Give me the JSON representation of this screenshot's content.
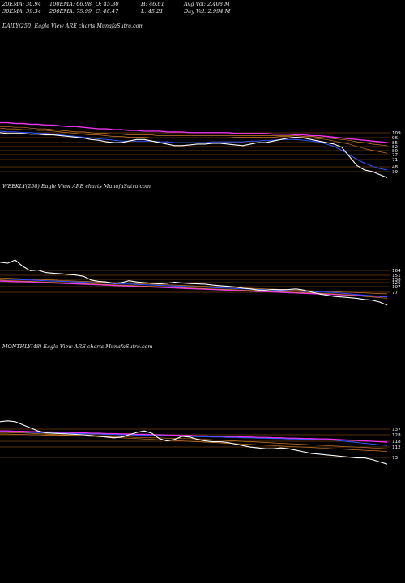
{
  "header": {
    "ema20": "20EMA: 30.94",
    "ema100": "100EMA: 66.98",
    "open": "O: 45.30",
    "high": "H: 46.61",
    "avg_vol": "Avg Vol: 2.408 M",
    "ema30": "30EMA: 39.34",
    "ema200": "200EMA: 75.99",
    "close": "C: 46.47",
    "low": "L: 45.21",
    "day_vol": "Day Vol: 2.994 M"
  },
  "colors": {
    "background": "#000000",
    "price": "#ffffff",
    "ema_blue": "#3355ff",
    "ema_magenta": "#ee33ee",
    "ema_orange": "#cc7a2a",
    "level_line": "#c06a10"
  },
  "chart_data": [
    {
      "type": "line",
      "title": "DAILY(250) Eagle   View  ARE charts MunafaSutra.com",
      "y_tick_labels": [
        "109",
        "96",
        "85",
        "82",
        "80",
        "77",
        "71",
        "48",
        "39"
      ],
      "series": [
        {
          "values": [
            95,
            94,
            94,
            94,
            93,
            93,
            92,
            92,
            91,
            90,
            89,
            88,
            86,
            85,
            83,
            82,
            82,
            84,
            86,
            86,
            84,
            82,
            80,
            78,
            78,
            79,
            80,
            80,
            81,
            81,
            80,
            79,
            78,
            80,
            82,
            82,
            84,
            86,
            88,
            89,
            88,
            86,
            84,
            82,
            80,
            76,
            64,
            52,
            46,
            44,
            40,
            36
          ]
        },
        {
          "values": [
            97,
            96,
            96,
            95,
            95,
            94,
            94,
            93,
            92,
            91,
            90,
            89,
            88,
            87,
            86,
            85,
            84,
            84,
            84,
            84,
            84,
            83,
            83,
            82,
            82,
            82,
            82,
            82,
            83,
            83,
            83,
            83,
            83,
            84,
            84,
            85,
            85,
            86,
            86,
            86,
            85,
            84,
            83,
            80,
            77,
            72,
            66,
            60,
            55,
            51,
            48,
            46
          ]
        },
        {
          "values": [
            101,
            100,
            100,
            99,
            99,
            98,
            98,
            97,
            96,
            95,
            94,
            93,
            92,
            92,
            91,
            90,
            90,
            89,
            89,
            89,
            88,
            88,
            88,
            88,
            88,
            88,
            88,
            88,
            88,
            88,
            88,
            89,
            89,
            89,
            89,
            89,
            89,
            90,
            90,
            89,
            89,
            88,
            87,
            86,
            84,
            82,
            80,
            77,
            74,
            72,
            70,
            68
          ]
        },
        {
          "values": [
            103,
            103,
            102,
            102,
            101,
            100,
            100,
            99,
            98,
            97,
            96,
            96,
            95,
            94,
            94,
            93,
            93,
            92,
            92,
            92,
            92,
            91,
            91,
            91,
            91,
            91,
            91,
            91,
            91,
            91,
            91,
            91,
            91,
            91,
            91,
            91,
            91,
            91,
            91,
            91,
            90,
            90,
            89,
            88,
            87,
            86,
            85,
            83,
            82,
            80,
            79,
            78
          ]
        },
        {
          "values": [
            108,
            108,
            107,
            107,
            106,
            106,
            105,
            105,
            104,
            103,
            103,
            102,
            101,
            100,
            100,
            99,
            99,
            98,
            98,
            97,
            97,
            97,
            96,
            96,
            96,
            95,
            95,
            95,
            95,
            95,
            95,
            94,
            94,
            94,
            94,
            94,
            93,
            93,
            93,
            92,
            92,
            91,
            91,
            90,
            89,
            88,
            87,
            86,
            85,
            84,
            83,
            82
          ]
        }
      ]
    },
    {
      "type": "line",
      "title": "WEEKLY(258) Eagle   View  ARE charts MunafaSutra.com",
      "y_tick_labels": [
        "164",
        "151",
        "138",
        "126",
        "107",
        "77"
      ],
      "series": [
        {
          "values": [
            185,
            182,
            192,
            172,
            158,
            160,
            152,
            150,
            148,
            146,
            144,
            140,
            128,
            124,
            122,
            118,
            120,
            126,
            122,
            120,
            118,
            116,
            118,
            121,
            119,
            117,
            116,
            115,
            112,
            110,
            108,
            106,
            102,
            100,
            96,
            96,
            98,
            97,
            98,
            100,
            96,
            90,
            84,
            80,
            76,
            74,
            72,
            70,
            66,
            64,
            58,
            48
          ]
        },
        {
          "values": [
            132,
            131,
            130,
            129,
            128,
            127,
            126,
            125,
            124,
            123,
            122,
            121,
            120,
            119,
            118,
            117,
            116,
            115,
            114,
            113,
            112,
            111,
            110,
            109,
            108,
            107,
            106,
            105,
            104,
            103,
            102,
            101,
            100,
            99,
            98,
            97,
            96,
            95,
            94,
            93,
            92,
            91,
            90,
            89,
            88,
            86,
            84,
            82,
            80,
            78,
            76,
            74
          ]
        },
        {
          "values": [
            128,
            127,
            126,
            125,
            124,
            123,
            122,
            121,
            120,
            119,
            118,
            117,
            116,
            115,
            114,
            113,
            112,
            111,
            110,
            109,
            108,
            107,
            106,
            105,
            104,
            103,
            102,
            101,
            100,
            99,
            98,
            97,
            96,
            95,
            94,
            93,
            92,
            91,
            90,
            89,
            88,
            87,
            86,
            85,
            84,
            82,
            80,
            78,
            76,
            74,
            72,
            70
          ]
        },
        {
          "values": [
            135,
            134,
            133,
            132,
            131,
            130,
            129,
            128,
            127,
            126,
            125,
            124,
            123,
            122,
            121,
            120,
            119,
            118,
            117,
            116,
            115,
            114,
            113,
            112,
            111,
            110,
            109,
            108,
            107,
            106,
            105,
            104,
            103,
            102,
            101,
            100,
            99,
            98,
            97,
            96,
            95,
            94,
            93,
            92,
            91,
            90,
            89,
            88,
            87,
            86,
            85,
            84
          ]
        },
        {
          "values": [
            125,
            124,
            123,
            123,
            122,
            121,
            120,
            119,
            118,
            117,
            116,
            115,
            114,
            113,
            112,
            111,
            110,
            109,
            108,
            107,
            106,
            105,
            104,
            103,
            102,
            101,
            100,
            99,
            98,
            97,
            96,
            95,
            94,
            93,
            92,
            91,
            90,
            89,
            88,
            87,
            86,
            85,
            84,
            83,
            82,
            81,
            80,
            79,
            78,
            77,
            76,
            75
          ]
        }
      ]
    },
    {
      "type": "line",
      "title": "MONTHLY(48) Eagle   View  ARE charts MunafaSutra.com",
      "y_tick_labels": [
        "137",
        "128",
        "118",
        "112",
        "73"
      ],
      "series": [
        {
          "values": [
            150,
            152,
            150,
            142,
            134,
            126,
            121,
            120,
            119,
            118,
            117,
            116,
            114,
            112,
            110,
            108,
            110,
            116,
            122,
            126,
            120,
            106,
            100,
            104,
            112,
            110,
            104,
            100,
            98,
            98,
            96,
            92,
            88,
            84,
            82,
            80,
            80,
            82,
            80,
            76,
            72,
            68,
            66,
            64,
            62,
            60,
            58,
            56,
            56,
            52,
            46,
            40
          ]
        },
        {
          "values": [
            124,
            124,
            123,
            123,
            122,
            122,
            121,
            121,
            120,
            120,
            119,
            119,
            118,
            118,
            117,
            117,
            116,
            116,
            115,
            115,
            114,
            114,
            113,
            113,
            112,
            112,
            111,
            111,
            110,
            110,
            109,
            109,
            108,
            108,
            107,
            107,
            106,
            106,
            105,
            105,
            104,
            104,
            103,
            103,
            102,
            100,
            98,
            96,
            94,
            92,
            90,
            88
          ]
        },
        {
          "values": [
            122,
            122,
            121,
            121,
            120,
            119,
            118,
            117,
            116,
            115,
            114,
            113,
            112,
            111,
            110,
            109,
            108,
            107,
            106,
            105,
            104,
            103,
            102,
            101,
            100,
            99,
            98,
            97,
            96,
            95,
            94,
            93,
            92,
            91,
            90,
            89,
            88,
            87,
            86,
            85,
            84,
            83,
            82,
            81,
            80,
            79,
            78,
            77,
            76,
            75,
            74,
            73
          ]
        },
        {
          "values": [
            118,
            118,
            117,
            117,
            116,
            116,
            115,
            115,
            114,
            114,
            113,
            113,
            112,
            112,
            111,
            111,
            110,
            110,
            109,
            109,
            108,
            108,
            107,
            107,
            106,
            106,
            105,
            104,
            103,
            102,
            101,
            100,
            99,
            98,
            97,
            96,
            95,
            94,
            93,
            92,
            91,
            90,
            89,
            88,
            87,
            86,
            85,
            84,
            83,
            82,
            81,
            80
          ]
        },
        {
          "values": [
            126,
            126,
            125,
            125,
            124,
            124,
            123,
            123,
            122,
            122,
            121,
            121,
            120,
            120,
            119,
            119,
            118,
            118,
            117,
            117,
            116,
            116,
            115,
            115,
            114,
            114,
            113,
            113,
            112,
            112,
            111,
            111,
            110,
            110,
            109,
            109,
            108,
            108,
            107,
            107,
            106,
            106,
            105,
            105,
            104,
            103,
            102,
            101,
            100,
            99,
            98,
            97
          ]
        }
      ]
    }
  ]
}
